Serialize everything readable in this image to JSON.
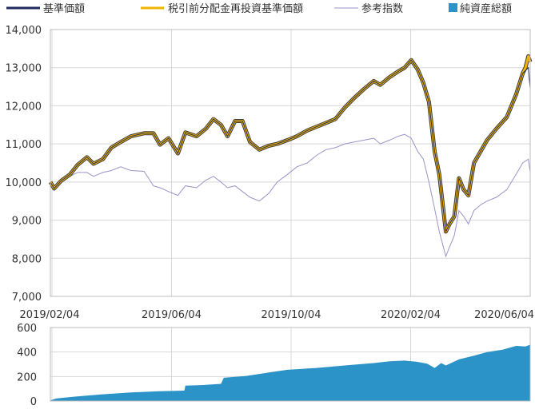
{
  "chart_data": [
    {
      "type": "line",
      "legend": [
        {
          "label": "基準価額",
          "color": "#1f2a5c",
          "kind": "line"
        },
        {
          "label": "税引前分配金再投資基準価額",
          "color": "#f0b400",
          "kind": "line"
        },
        {
          "label": "参考指数",
          "color": "#9b93c9",
          "kind": "line"
        },
        {
          "label": "純資産総額",
          "color": "#2b93c8",
          "kind": "square"
        }
      ],
      "x_ticks": [
        "2019/02/04",
        "2019/06/04",
        "2019/10/04",
        "2020/02/04",
        "2020/06/04"
      ],
      "y_ticks": [
        "7,000",
        "8,000",
        "9,000",
        "10,000",
        "11,000",
        "12,000",
        "13,000",
        "14,000"
      ],
      "ylim": [
        7000,
        14000
      ],
      "x_range": [
        "2019-02-04",
        "2020-06-30"
      ],
      "grid": true,
      "series": [
        {
          "name": "基準価額",
          "color": "#1f2a5c",
          "points": [
            [
              "2019-02-04",
              10000
            ],
            [
              "2019-02-08",
              9830
            ],
            [
              "2019-02-15",
              10020
            ],
            [
              "2019-02-25",
              10200
            ],
            [
              "2019-03-05",
              10450
            ],
            [
              "2019-03-15",
              10650
            ],
            [
              "2019-03-22",
              10480
            ],
            [
              "2019-04-01",
              10600
            ],
            [
              "2019-04-10",
              10900
            ],
            [
              "2019-04-20",
              11050
            ],
            [
              "2019-05-01",
              11200
            ],
            [
              "2019-05-15",
              11280
            ],
            [
              "2019-05-25",
              11280
            ],
            [
              "2019-06-01",
              10980
            ],
            [
              "2019-06-10",
              11150
            ],
            [
              "2019-06-20",
              10750
            ],
            [
              "2019-06-28",
              11300
            ],
            [
              "2019-07-10",
              11200
            ],
            [
              "2019-07-20",
              11400
            ],
            [
              "2019-07-28",
              11650
            ],
            [
              "2019-08-05",
              11500
            ],
            [
              "2019-08-12",
              11200
            ],
            [
              "2019-08-20",
              11600
            ],
            [
              "2019-08-28",
              11600
            ],
            [
              "2019-09-05",
              11050
            ],
            [
              "2019-09-15",
              10850
            ],
            [
              "2019-09-25",
              10950
            ],
            [
              "2019-10-04",
              11000
            ],
            [
              "2019-10-15",
              11100
            ],
            [
              "2019-10-25",
              11200
            ],
            [
              "2019-11-05",
              11350
            ],
            [
              "2019-11-15",
              11450
            ],
            [
              "2019-11-25",
              11550
            ],
            [
              "2019-12-05",
              11650
            ],
            [
              "2019-12-15",
              11950
            ],
            [
              "2019-12-25",
              12200
            ],
            [
              "2020-01-05",
              12450
            ],
            [
              "2020-01-15",
              12650
            ],
            [
              "2020-01-22",
              12550
            ],
            [
              "2020-02-01",
              12750
            ],
            [
              "2020-02-10",
              12900
            ],
            [
              "2020-02-17",
              13000
            ],
            [
              "2020-02-24",
              13200
            ],
            [
              "2020-03-02",
              12950
            ],
            [
              "2020-03-08",
              12600
            ],
            [
              "2020-03-14",
              12100
            ],
            [
              "2020-03-20",
              10800
            ],
            [
              "2020-03-25",
              10200
            ],
            [
              "2020-04-01",
              8700
            ],
            [
              "2020-04-05",
              8900
            ],
            [
              "2020-04-10",
              9100
            ],
            [
              "2020-04-15",
              10100
            ],
            [
              "2020-04-20",
              9800
            ],
            [
              "2020-04-25",
              9650
            ],
            [
              "2020-05-01",
              10500
            ],
            [
              "2020-05-08",
              10800
            ],
            [
              "2020-05-15",
              11100
            ],
            [
              "2020-05-25",
              11400
            ],
            [
              "2020-06-05",
              11700
            ],
            [
              "2020-06-15",
              12300
            ],
            [
              "2020-06-22",
              12850
            ],
            [
              "2020-06-28",
              13000
            ],
            [
              "2020-06-30",
              12450
            ]
          ]
        },
        {
          "name": "税引前分配金再投資基準価額",
          "color": "#f0b400",
          "points": [
            [
              "2019-02-04",
              10000
            ],
            [
              "2019-02-08",
              9830
            ],
            [
              "2019-02-15",
              10020
            ],
            [
              "2019-02-25",
              10200
            ],
            [
              "2019-03-05",
              10450
            ],
            [
              "2019-03-15",
              10650
            ],
            [
              "2019-03-22",
              10480
            ],
            [
              "2019-04-01",
              10600
            ],
            [
              "2019-04-10",
              10900
            ],
            [
              "2019-04-20",
              11050
            ],
            [
              "2019-05-01",
              11200
            ],
            [
              "2019-05-15",
              11280
            ],
            [
              "2019-05-25",
              11280
            ],
            [
              "2019-06-01",
              10980
            ],
            [
              "2019-06-10",
              11150
            ],
            [
              "2019-06-20",
              10750
            ],
            [
              "2019-06-28",
              11300
            ],
            [
              "2019-07-10",
              11200
            ],
            [
              "2019-07-20",
              11400
            ],
            [
              "2019-07-28",
              11650
            ],
            [
              "2019-08-05",
              11500
            ],
            [
              "2019-08-12",
              11200
            ],
            [
              "2019-08-20",
              11600
            ],
            [
              "2019-08-28",
              11600
            ],
            [
              "2019-09-05",
              11050
            ],
            [
              "2019-09-15",
              10850
            ],
            [
              "2019-09-25",
              10950
            ],
            [
              "2019-10-04",
              11000
            ],
            [
              "2019-10-15",
              11100
            ],
            [
              "2019-10-25",
              11200
            ],
            [
              "2019-11-05",
              11350
            ],
            [
              "2019-11-15",
              11450
            ],
            [
              "2019-11-25",
              11550
            ],
            [
              "2019-12-05",
              11650
            ],
            [
              "2019-12-15",
              11950
            ],
            [
              "2019-12-25",
              12200
            ],
            [
              "2020-01-05",
              12450
            ],
            [
              "2020-01-15",
              12650
            ],
            [
              "2020-01-22",
              12550
            ],
            [
              "2020-02-01",
              12750
            ],
            [
              "2020-02-10",
              12900
            ],
            [
              "2020-02-17",
              13000
            ],
            [
              "2020-02-24",
              13200
            ],
            [
              "2020-03-02",
              12950
            ],
            [
              "2020-03-08",
              12600
            ],
            [
              "2020-03-14",
              12100
            ],
            [
              "2020-03-20",
              10800
            ],
            [
              "2020-03-25",
              10200
            ],
            [
              "2020-04-01",
              8700
            ],
            [
              "2020-04-05",
              8900
            ],
            [
              "2020-04-10",
              9100
            ],
            [
              "2020-04-15",
              10100
            ],
            [
              "2020-04-20",
              9800
            ],
            [
              "2020-04-25",
              9650
            ],
            [
              "2020-05-01",
              10500
            ],
            [
              "2020-05-08",
              10800
            ],
            [
              "2020-05-15",
              11100
            ],
            [
              "2020-05-25",
              11400
            ],
            [
              "2020-06-05",
              11700
            ],
            [
              "2020-06-15",
              12300
            ],
            [
              "2020-06-22",
              12850
            ],
            [
              "2020-06-25",
              13000
            ],
            [
              "2020-06-28",
              13300
            ],
            [
              "2020-06-30",
              13150
            ]
          ]
        },
        {
          "name": "参考指数",
          "color": "#9b93c9",
          "points": [
            [
              "2019-02-04",
              10000
            ],
            [
              "2019-02-08",
              9780
            ],
            [
              "2019-02-15",
              10050
            ],
            [
              "2019-02-25",
              10150
            ],
            [
              "2019-03-05",
              10250
            ],
            [
              "2019-03-15",
              10250
            ],
            [
              "2019-03-22",
              10150
            ],
            [
              "2019-04-01",
              10250
            ],
            [
              "2019-04-10",
              10300
            ],
            [
              "2019-04-20",
              10400
            ],
            [
              "2019-05-01",
              10300
            ],
            [
              "2019-05-15",
              10280
            ],
            [
              "2019-05-25",
              9900
            ],
            [
              "2019-06-01",
              9850
            ],
            [
              "2019-06-10",
              9750
            ],
            [
              "2019-06-20",
              9650
            ],
            [
              "2019-06-28",
              9900
            ],
            [
              "2019-07-10",
              9850
            ],
            [
              "2019-07-20",
              10050
            ],
            [
              "2019-07-28",
              10150
            ],
            [
              "2019-08-05",
              10000
            ],
            [
              "2019-08-12",
              9850
            ],
            [
              "2019-08-20",
              9900
            ],
            [
              "2019-08-28",
              9750
            ],
            [
              "2019-09-05",
              9600
            ],
            [
              "2019-09-15",
              9500
            ],
            [
              "2019-09-25",
              9700
            ],
            [
              "2019-10-04",
              10000
            ],
            [
              "2019-10-15",
              10200
            ],
            [
              "2019-10-25",
              10400
            ],
            [
              "2019-11-05",
              10500
            ],
            [
              "2019-11-15",
              10700
            ],
            [
              "2019-11-25",
              10850
            ],
            [
              "2019-12-05",
              10900
            ],
            [
              "2019-12-15",
              11000
            ],
            [
              "2019-12-25",
              11050
            ],
            [
              "2020-01-05",
              11100
            ],
            [
              "2020-01-15",
              11150
            ],
            [
              "2020-01-22",
              11000
            ],
            [
              "2020-02-01",
              11100
            ],
            [
              "2020-02-10",
              11200
            ],
            [
              "2020-02-17",
              11250
            ],
            [
              "2020-02-24",
              11150
            ],
            [
              "2020-03-02",
              10800
            ],
            [
              "2020-03-08",
              10600
            ],
            [
              "2020-03-14",
              10000
            ],
            [
              "2020-03-20",
              9300
            ],
            [
              "2020-03-25",
              8700
            ],
            [
              "2020-04-01",
              8050
            ],
            [
              "2020-04-05",
              8300
            ],
            [
              "2020-04-10",
              8600
            ],
            [
              "2020-04-15",
              9250
            ],
            [
              "2020-04-20",
              9100
            ],
            [
              "2020-04-25",
              8900
            ],
            [
              "2020-05-01",
              9250
            ],
            [
              "2020-05-08",
              9400
            ],
            [
              "2020-05-15",
              9500
            ],
            [
              "2020-05-25",
              9600
            ],
            [
              "2020-06-05",
              9800
            ],
            [
              "2020-06-15",
              10200
            ],
            [
              "2020-06-22",
              10500
            ],
            [
              "2020-06-28",
              10600
            ],
            [
              "2020-06-30",
              10250
            ]
          ]
        }
      ]
    },
    {
      "type": "area",
      "y_ticks": [
        "0",
        "200",
        "400",
        "600"
      ],
      "ylim": [
        0,
        600
      ],
      "x_range": [
        "2019-02-04",
        "2020-06-30"
      ],
      "grid": true,
      "series": [
        {
          "name": "純資産総額",
          "color": "#2b93c8",
          "points": [
            [
              "2019-02-04",
              5
            ],
            [
              "2019-02-10",
              20
            ],
            [
              "2019-03-01",
              35
            ],
            [
              "2019-04-01",
              55
            ],
            [
              "2019-05-01",
              70
            ],
            [
              "2019-06-01",
              80
            ],
            [
              "2019-06-27",
              85
            ],
            [
              "2019-06-28",
              125
            ],
            [
              "2019-07-15",
              130
            ],
            [
              "2019-08-05",
              140
            ],
            [
              "2019-08-08",
              190
            ],
            [
              "2019-09-01",
              205
            ],
            [
              "2019-10-01",
              240
            ],
            [
              "2019-10-15",
              255
            ],
            [
              "2019-11-15",
              270
            ],
            [
              "2019-12-15",
              290
            ],
            [
              "2020-01-15",
              310
            ],
            [
              "2020-02-01",
              325
            ],
            [
              "2020-02-17",
              330
            ],
            [
              "2020-03-01",
              320
            ],
            [
              "2020-03-12",
              305
            ],
            [
              "2020-03-20",
              270
            ],
            [
              "2020-03-27",
              310
            ],
            [
              "2020-04-01",
              290
            ],
            [
              "2020-04-15",
              340
            ],
            [
              "2020-05-01",
              370
            ],
            [
              "2020-05-15",
              400
            ],
            [
              "2020-06-01",
              420
            ],
            [
              "2020-06-15",
              450
            ],
            [
              "2020-06-25",
              445
            ],
            [
              "2020-06-30",
              460
            ]
          ]
        }
      ]
    }
  ]
}
